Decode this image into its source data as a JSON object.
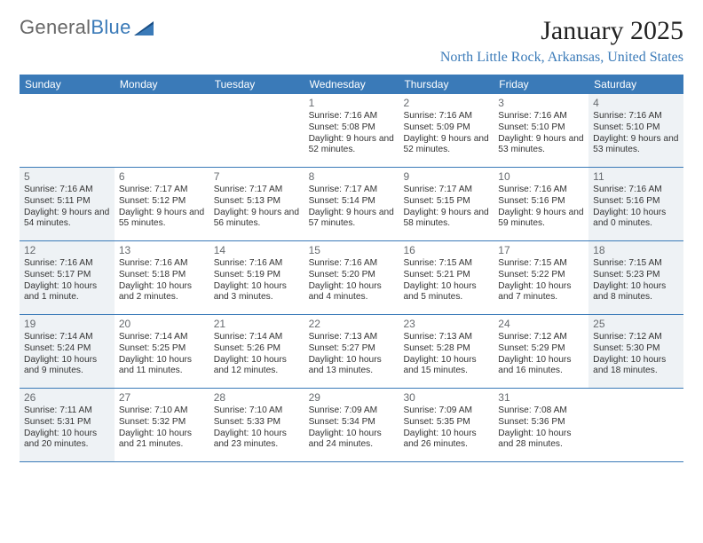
{
  "logo": {
    "text_general": "General",
    "text_blue": "Blue",
    "brand_color": "#3a7ab8"
  },
  "title": "January 2025",
  "location": "North Little Rock, Arkansas, United States",
  "colors": {
    "header_bg": "#3a7ab8",
    "header_text": "#ffffff",
    "day_num": "#666a6e",
    "body_text": "#333333",
    "shaded_bg": "#eef2f5",
    "row_border": "#3a7ab8",
    "page_bg": "#ffffff"
  },
  "typography": {
    "title_fontsize": 30,
    "location_fontsize": 16,
    "header_fontsize": 12,
    "daynum_fontsize": 12,
    "detail_fontsize": 10.2
  },
  "calendar": {
    "type": "table",
    "day_headers": [
      "Sunday",
      "Monday",
      "Tuesday",
      "Wednesday",
      "Thursday",
      "Friday",
      "Saturday"
    ],
    "weeks": [
      [
        {
          "num": "",
          "sunrise": "",
          "sunset": "",
          "daylight": ""
        },
        {
          "num": "",
          "sunrise": "",
          "sunset": "",
          "daylight": ""
        },
        {
          "num": "",
          "sunrise": "",
          "sunset": "",
          "daylight": ""
        },
        {
          "num": "1",
          "sunrise": "Sunrise: 7:16 AM",
          "sunset": "Sunset: 5:08 PM",
          "daylight": "Daylight: 9 hours and 52 minutes."
        },
        {
          "num": "2",
          "sunrise": "Sunrise: 7:16 AM",
          "sunset": "Sunset: 5:09 PM",
          "daylight": "Daylight: 9 hours and 52 minutes."
        },
        {
          "num": "3",
          "sunrise": "Sunrise: 7:16 AM",
          "sunset": "Sunset: 5:10 PM",
          "daylight": "Daylight: 9 hours and 53 minutes."
        },
        {
          "num": "4",
          "sunrise": "Sunrise: 7:16 AM",
          "sunset": "Sunset: 5:10 PM",
          "daylight": "Daylight: 9 hours and 53 minutes."
        }
      ],
      [
        {
          "num": "5",
          "sunrise": "Sunrise: 7:16 AM",
          "sunset": "Sunset: 5:11 PM",
          "daylight": "Daylight: 9 hours and 54 minutes."
        },
        {
          "num": "6",
          "sunrise": "Sunrise: 7:17 AM",
          "sunset": "Sunset: 5:12 PM",
          "daylight": "Daylight: 9 hours and 55 minutes."
        },
        {
          "num": "7",
          "sunrise": "Sunrise: 7:17 AM",
          "sunset": "Sunset: 5:13 PM",
          "daylight": "Daylight: 9 hours and 56 minutes."
        },
        {
          "num": "8",
          "sunrise": "Sunrise: 7:17 AM",
          "sunset": "Sunset: 5:14 PM",
          "daylight": "Daylight: 9 hours and 57 minutes."
        },
        {
          "num": "9",
          "sunrise": "Sunrise: 7:17 AM",
          "sunset": "Sunset: 5:15 PM",
          "daylight": "Daylight: 9 hours and 58 minutes."
        },
        {
          "num": "10",
          "sunrise": "Sunrise: 7:16 AM",
          "sunset": "Sunset: 5:16 PM",
          "daylight": "Daylight: 9 hours and 59 minutes."
        },
        {
          "num": "11",
          "sunrise": "Sunrise: 7:16 AM",
          "sunset": "Sunset: 5:16 PM",
          "daylight": "Daylight: 10 hours and 0 minutes."
        }
      ],
      [
        {
          "num": "12",
          "sunrise": "Sunrise: 7:16 AM",
          "sunset": "Sunset: 5:17 PM",
          "daylight": "Daylight: 10 hours and 1 minute."
        },
        {
          "num": "13",
          "sunrise": "Sunrise: 7:16 AM",
          "sunset": "Sunset: 5:18 PM",
          "daylight": "Daylight: 10 hours and 2 minutes."
        },
        {
          "num": "14",
          "sunrise": "Sunrise: 7:16 AM",
          "sunset": "Sunset: 5:19 PM",
          "daylight": "Daylight: 10 hours and 3 minutes."
        },
        {
          "num": "15",
          "sunrise": "Sunrise: 7:16 AM",
          "sunset": "Sunset: 5:20 PM",
          "daylight": "Daylight: 10 hours and 4 minutes."
        },
        {
          "num": "16",
          "sunrise": "Sunrise: 7:15 AM",
          "sunset": "Sunset: 5:21 PM",
          "daylight": "Daylight: 10 hours and 5 minutes."
        },
        {
          "num": "17",
          "sunrise": "Sunrise: 7:15 AM",
          "sunset": "Sunset: 5:22 PM",
          "daylight": "Daylight: 10 hours and 7 minutes."
        },
        {
          "num": "18",
          "sunrise": "Sunrise: 7:15 AM",
          "sunset": "Sunset: 5:23 PM",
          "daylight": "Daylight: 10 hours and 8 minutes."
        }
      ],
      [
        {
          "num": "19",
          "sunrise": "Sunrise: 7:14 AM",
          "sunset": "Sunset: 5:24 PM",
          "daylight": "Daylight: 10 hours and 9 minutes."
        },
        {
          "num": "20",
          "sunrise": "Sunrise: 7:14 AM",
          "sunset": "Sunset: 5:25 PM",
          "daylight": "Daylight: 10 hours and 11 minutes."
        },
        {
          "num": "21",
          "sunrise": "Sunrise: 7:14 AM",
          "sunset": "Sunset: 5:26 PM",
          "daylight": "Daylight: 10 hours and 12 minutes."
        },
        {
          "num": "22",
          "sunrise": "Sunrise: 7:13 AM",
          "sunset": "Sunset: 5:27 PM",
          "daylight": "Daylight: 10 hours and 13 minutes."
        },
        {
          "num": "23",
          "sunrise": "Sunrise: 7:13 AM",
          "sunset": "Sunset: 5:28 PM",
          "daylight": "Daylight: 10 hours and 15 minutes."
        },
        {
          "num": "24",
          "sunrise": "Sunrise: 7:12 AM",
          "sunset": "Sunset: 5:29 PM",
          "daylight": "Daylight: 10 hours and 16 minutes."
        },
        {
          "num": "25",
          "sunrise": "Sunrise: 7:12 AM",
          "sunset": "Sunset: 5:30 PM",
          "daylight": "Daylight: 10 hours and 18 minutes."
        }
      ],
      [
        {
          "num": "26",
          "sunrise": "Sunrise: 7:11 AM",
          "sunset": "Sunset: 5:31 PM",
          "daylight": "Daylight: 10 hours and 20 minutes."
        },
        {
          "num": "27",
          "sunrise": "Sunrise: 7:10 AM",
          "sunset": "Sunset: 5:32 PM",
          "daylight": "Daylight: 10 hours and 21 minutes."
        },
        {
          "num": "28",
          "sunrise": "Sunrise: 7:10 AM",
          "sunset": "Sunset: 5:33 PM",
          "daylight": "Daylight: 10 hours and 23 minutes."
        },
        {
          "num": "29",
          "sunrise": "Sunrise: 7:09 AM",
          "sunset": "Sunset: 5:34 PM",
          "daylight": "Daylight: 10 hours and 24 minutes."
        },
        {
          "num": "30",
          "sunrise": "Sunrise: 7:09 AM",
          "sunset": "Sunset: 5:35 PM",
          "daylight": "Daylight: 10 hours and 26 minutes."
        },
        {
          "num": "31",
          "sunrise": "Sunrise: 7:08 AM",
          "sunset": "Sunset: 5:36 PM",
          "daylight": "Daylight: 10 hours and 28 minutes."
        },
        {
          "num": "",
          "sunrise": "",
          "sunset": "",
          "daylight": ""
        }
      ]
    ],
    "shaded_cols": [
      0,
      6
    ]
  }
}
